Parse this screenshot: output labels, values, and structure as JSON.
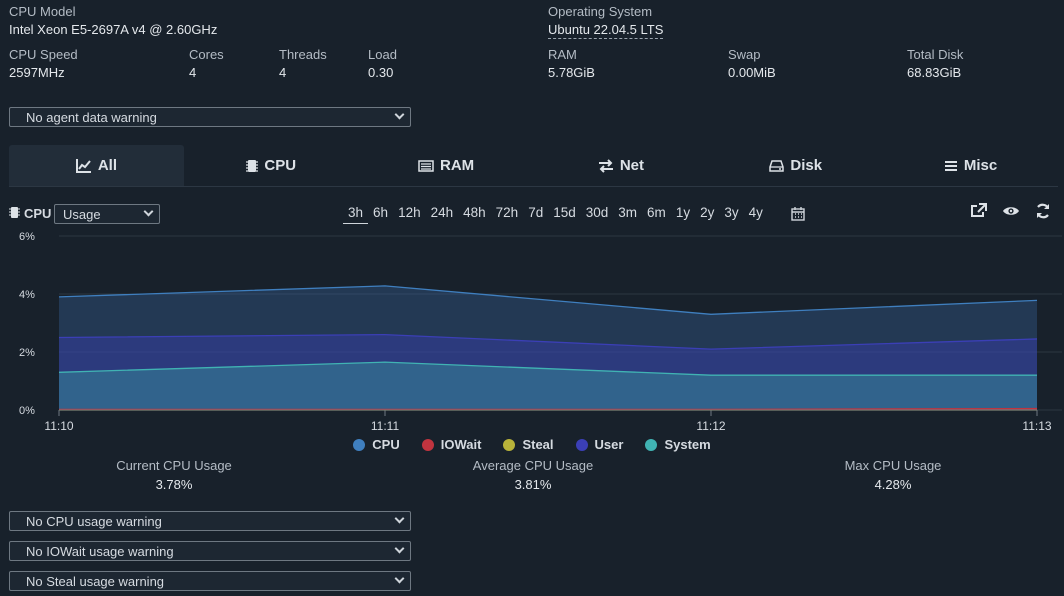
{
  "specs": {
    "cpu_model_label": "CPU Model",
    "cpu_model_value": "Intel Xeon E5-2697A v4 @ 2.60GHz",
    "os_label": "Operating System",
    "os_value": "Ubuntu 22.04.5 LTS",
    "cpu_speed_label": "CPU Speed",
    "cpu_speed_value": "2597MHz",
    "cores_label": "Cores",
    "cores_value": "4",
    "threads_label": "Threads",
    "threads_value": "4",
    "load_label": "Load",
    "load_value": "0.30",
    "ram_label": "RAM",
    "ram_value": "5.78GiB",
    "swap_label": "Swap",
    "swap_value": "0.00MiB",
    "disk_label": "Total Disk",
    "disk_value": "68.83GiB"
  },
  "agent_warning": "No agent data warning",
  "tabs": [
    {
      "label": "All",
      "icon": "chart-line-icon",
      "active": true
    },
    {
      "label": "CPU",
      "icon": "microchip-icon",
      "active": false
    },
    {
      "label": "RAM",
      "icon": "memory-icon",
      "active": false
    },
    {
      "label": "Net",
      "icon": "exchange-icon",
      "active": false
    },
    {
      "label": "Disk",
      "icon": "hdd-icon",
      "active": false
    },
    {
      "label": "Misc",
      "icon": "bars-icon",
      "active": false
    }
  ],
  "panel": {
    "title": "CPU",
    "metric_selected": "Usage",
    "ranges": [
      "3h",
      "6h",
      "12h",
      "24h",
      "48h",
      "72h",
      "7d",
      "15d",
      "30d",
      "3m",
      "6m",
      "1y",
      "2y",
      "3y",
      "4y"
    ],
    "active_range": "3h"
  },
  "chart_data": {
    "type": "area",
    "x": [
      "11:10",
      "11:11",
      "11:12",
      "11:13"
    ],
    "yticks": [
      "6%",
      "4%",
      "2%",
      "0%"
    ],
    "ylim": [
      0,
      6
    ],
    "grid": true,
    "legend_position": "bottom",
    "series": [
      {
        "name": "CPU",
        "color": "#3f7fbf",
        "values": [
          3.9,
          4.28,
          3.3,
          3.78
        ]
      },
      {
        "name": "IOWait",
        "color": "#c0343f",
        "values": [
          0.02,
          0.02,
          0.02,
          0.05
        ]
      },
      {
        "name": "Steal",
        "color": "#b8b33a",
        "values": [
          0.0,
          0.0,
          0.0,
          0.0
        ]
      },
      {
        "name": "User",
        "color": "#3b3fb6",
        "values": [
          2.5,
          2.6,
          2.1,
          2.45
        ]
      },
      {
        "name": "System",
        "color": "#40b3b3",
        "values": [
          1.3,
          1.65,
          1.2,
          1.2
        ]
      }
    ]
  },
  "stats": {
    "current_label": "Current CPU Usage",
    "current_value": "3.78%",
    "average_label": "Average CPU Usage",
    "average_value": "3.81%",
    "max_label": "Max CPU Usage",
    "max_value": "4.28%"
  },
  "warnings": [
    "No CPU usage warning",
    "No IOWait usage warning",
    "No Steal usage warning"
  ]
}
